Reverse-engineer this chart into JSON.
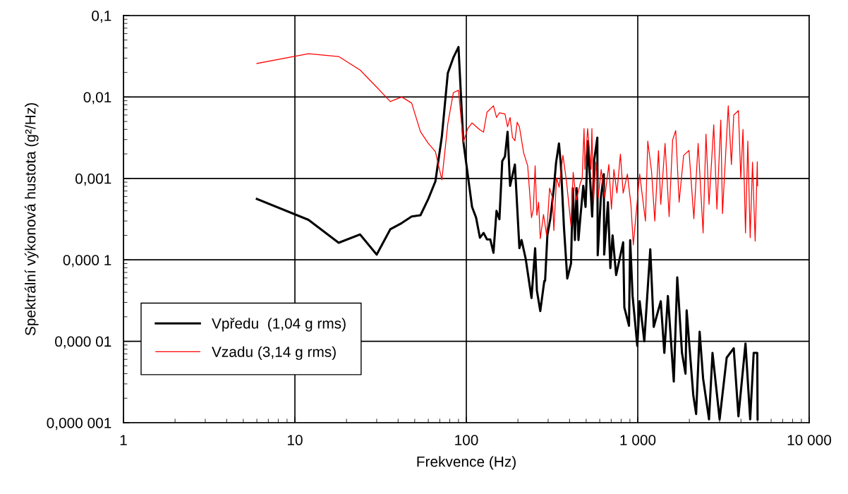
{
  "chart_data": {
    "type": "line",
    "xlabel": "Frekvence (Hz)",
    "ylabel": "Spektrální výkonová hustota (g²/Hz)",
    "log": "xy",
    "grid": true,
    "legend": "bottom left",
    "marker": "none",
    "line_style": "solid",
    "xlim": [
      1,
      10000
    ],
    "ylim": [
      1e-06,
      0.1
    ],
    "xticks": [
      1,
      10,
      100,
      {
        "value": 1000,
        "label": "1 000"
      },
      {
        "value": 10000,
        "label": "10 000"
      }
    ],
    "yticks": [
      {
        "value": 1e-06,
        "label": "0,000 001"
      },
      {
        "value": 1e-05,
        "label": "0,000 01"
      },
      {
        "value": 0.0001,
        "label": "0,000 1"
      },
      {
        "value": 0.001,
        "label": "0,001"
      },
      {
        "value": 0.01,
        "label": "0,01"
      },
      {
        "value": 0.1,
        "label": "0,1"
      }
    ],
    "series": [
      {
        "name": "Vpředu  (1,04 g rms)",
        "color": "#000000",
        "x": [
          6,
          12,
          18,
          24,
          30,
          36,
          42,
          48,
          54,
          60,
          66,
          72,
          78,
          84,
          90,
          96,
          108,
          114,
          120,
          126,
          132,
          138,
          144,
          150,
          156,
          162,
          168,
          174,
          180,
          192,
          204,
          210,
          222,
          240,
          252,
          258,
          270,
          285,
          288,
          297,
          309,
          324,
          334,
          347,
          356,
          371,
          388,
          408,
          418,
          430,
          440,
          451,
          463,
          481,
          496,
          512,
          542,
          557,
          581,
          584,
          609,
          634,
          637,
          670,
          692,
          713,
          748,
          822,
          835,
          889,
          903,
          933,
          994,
          1026,
          1092,
          1183,
          1239,
          1362,
          1429,
          1499,
          1622,
          1700,
          1811,
          1899,
          1928,
          2107,
          2190,
          2296,
          2405,
          2604,
          2729,
          3002,
          3302,
          3630,
          3866,
          4250,
          4526,
          4745,
          4977,
          5000
        ],
        "values": [
          0.00056,
          0.00031,
          0.000162,
          0.000205,
          0.000116,
          0.000237,
          0.000283,
          0.000341,
          0.000353,
          0.00056,
          0.00092,
          0.00328,
          0.0197,
          0.0304,
          0.041,
          0.00287,
          0.000446,
          0.00033,
          0.000187,
          0.000214,
          0.000178,
          0.000178,
          0.000122,
          0.0004,
          0.000315,
          0.00163,
          0.00186,
          0.00374,
          0.00081,
          0.00148,
          0.000139,
          0.000175,
          0.000103,
          3.4e-05,
          0.000139,
          4.2e-05,
          2.35e-05,
          5.5e-05,
          5.5e-05,
          0.0002,
          0.00032,
          0.00076,
          0.00158,
          0.00269,
          0.00148,
          0.000253,
          5.9e-05,
          9e-05,
          0.00076,
          0.000175,
          0.00076,
          0.000175,
          0.00034,
          0.00081,
          0.000446,
          0.00287,
          0.00034,
          0.00168,
          0.00317,
          0.000114,
          0.00058,
          0.00113,
          0.000116,
          0.00051,
          7.9e-05,
          0.0002,
          6.5e-05,
          0.000164,
          2.6e-05,
          1.55e-05,
          0.000175,
          3.6e-05,
          8.8e-06,
          3.1e-05,
          1e-05,
          0.000135,
          1.5e-05,
          3.1e-05,
          7.2e-06,
          3.6e-05,
          3.2e-06,
          6.1e-05,
          7.2e-06,
          4e-06,
          2.4e-05,
          2.2e-06,
          1.28e-06,
          1.31e-05,
          3.5e-06,
          1.1e-06,
          7.2e-06,
          1.1e-06,
          6.3e-06,
          8.2e-06,
          1.2e-06,
          9.4e-06,
          1.1e-06,
          7.2e-06,
          7.2e-06,
          1.1e-06
        ]
      },
      {
        "name": "Vzadu (3,14 g rms)",
        "color": "#ff0000",
        "x": [
          6,
          12,
          18,
          24,
          30,
          36,
          42,
          48,
          54,
          60,
          66,
          72,
          78,
          84,
          90,
          96,
          102,
          108,
          120,
          126,
          132,
          144,
          150,
          156,
          168,
          174,
          180,
          186,
          192,
          198,
          204,
          216,
          228,
          240,
          246,
          252,
          258,
          264,
          270,
          282,
          294,
          306,
          318,
          324,
          336,
          348,
          366,
          384,
          408,
          420,
          438,
          462,
          474,
          486,
          492,
          510,
          534,
          540,
          552,
          570,
          588,
          612,
          642,
          678,
          702,
          726,
          756,
          792,
          822,
          870,
          912,
          942,
          1026,
          1109,
          1144,
          1204,
          1257,
          1321,
          1362,
          1443,
          1524,
          1597,
          1665,
          1743,
          1852,
          1990,
          2124,
          2250,
          2405,
          2500,
          2604,
          2775,
          2895,
          3050,
          3120,
          3372,
          3518,
          3630,
          3866,
          3990,
          4110,
          4250,
          4385,
          4526,
          4670,
          4840,
          4980,
          5000
        ],
        "values": [
          0.0258,
          0.034,
          0.0314,
          0.0214,
          0.0132,
          0.0088,
          0.01,
          0.0084,
          0.00374,
          0.00269,
          0.00213,
          0.00096,
          0.0047,
          0.0113,
          0.0121,
          0.00277,
          0.0041,
          0.0048,
          0.00395,
          0.0037,
          0.0065,
          0.0078,
          0.0056,
          0.0064,
          0.0062,
          0.0043,
          0.0056,
          0.00317,
          0.0029,
          0.0049,
          0.0043,
          0.00206,
          0.00143,
          0.00033,
          0.00042,
          0.00143,
          0.000353,
          0.00051,
          0.000182,
          0.00036,
          0.0002,
          0.00076,
          0.00058,
          0.000229,
          0.00102,
          0.00078,
          0.00192,
          0.00092,
          0.00026,
          0.00119,
          0.00054,
          0.00087,
          0.001,
          0.0041,
          0.00129,
          0.0041,
          0.00129,
          0.0041,
          0.00051,
          0.00158,
          0.00058,
          0.00129,
          0.00058,
          0.00148,
          0.00042,
          0.00129,
          0.00066,
          0.00199,
          0.00066,
          0.00113,
          0.00048,
          0.000153,
          0.00113,
          0.0003,
          0.00287,
          0.00121,
          0.0003,
          0.0022,
          0.00048,
          0.00269,
          0.00034,
          0.00296,
          0.00387,
          0.00051,
          0.00192,
          0.0022,
          0.00032,
          0.00269,
          0.000214,
          0.0035,
          0.00048,
          0.00456,
          0.00042,
          0.0052,
          0.00037,
          0.0078,
          0.00148,
          0.006,
          0.0068,
          0.00099,
          0.004,
          0.000214,
          0.00287,
          0.000187,
          0.00158,
          0.00017,
          0.0016,
          0.00081
        ]
      }
    ]
  }
}
